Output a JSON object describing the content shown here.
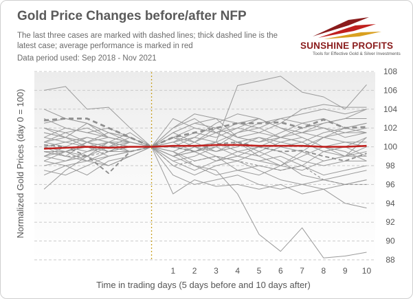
{
  "header": {
    "title": "Gold Price Changes before/after NFP",
    "subtitle": "The last three cases are marked with dashed lines; thick dashed line is the latest case; average performance is marked in red",
    "period": "Data period used: Sep 2018 - Nov 2021"
  },
  "logo": {
    "name": "SUNSHINE PROFITS",
    "tagline": "Tools for Effective Gold & Silver Investments"
  },
  "chart_data": {
    "type": "line",
    "xlabel": "Time in trading days (5 days before and 10 days after)",
    "ylabel": "Normalized Gold Prices (day 0 = 100)",
    "x": [
      -5,
      -4,
      -3,
      -2,
      -1,
      0,
      1,
      2,
      3,
      4,
      5,
      6,
      7,
      8,
      9,
      10
    ],
    "x_tick_labels": [
      "",
      "",
      "",
      "",
      "",
      "",
      "1",
      "2",
      "3",
      "4",
      "5",
      "6",
      "7",
      "8",
      "9",
      "10"
    ],
    "ylim": [
      88,
      108
    ],
    "y_ticks": [
      88,
      90,
      92,
      94,
      96,
      98,
      100,
      102,
      104,
      106,
      108
    ],
    "y_axis_side": "right",
    "grid": "horizontal dashed",
    "event_marker_x": 0,
    "colors": {
      "cases": "#9a9a9a",
      "average": "#c0201e",
      "event_line": "#c8a020"
    },
    "series": [
      {
        "values": [
          106.0,
          106.4,
          104.0,
          104.2,
          102.0,
          100,
          99.0,
          99.5,
          100.5,
          106.5,
          107.0,
          107.5,
          105.8,
          105.3,
          104.0,
          106.6
        ]
      },
      {
        "values": [
          104.0,
          103.0,
          102.5,
          101.5,
          101.0,
          100,
          101.5,
          102.5,
          103.0,
          101.0,
          101.5,
          102.5,
          104.0,
          104.5,
          104.2,
          104.2
        ]
      },
      {
        "values": [
          101.5,
          101.0,
          102.5,
          101.0,
          100.5,
          100,
          103.0,
          102.0,
          101.5,
          102.0,
          103.0,
          102.0,
          101.5,
          102.5,
          103.0,
          104.0
        ]
      },
      {
        "values": [
          99.5,
          99.0,
          100.5,
          100.0,
          101.0,
          100,
          102.0,
          103.0,
          101.5,
          100.5,
          99.0,
          98.0,
          97.5,
          98.5,
          99.0,
          101.0
        ]
      },
      {
        "values": [
          95.5,
          97.5,
          99.0,
          100.5,
          101.5,
          100,
          95.0,
          96.5,
          95.8,
          96.0,
          95.5,
          96.0,
          95.0,
          95.5,
          94.0,
          93.5
        ]
      },
      {
        "values": [
          98.5,
          98.0,
          97.0,
          98.5,
          99.0,
          100,
          99.0,
          98.0,
          97.5,
          95.0,
          90.7,
          88.9,
          91.4,
          88.2,
          88.4,
          88.8
        ]
      },
      {
        "values": [
          100.5,
          101.0,
          100.0,
          99.5,
          100.5,
          100,
          97.0,
          96.0,
          96.5,
          97.0,
          96.0,
          95.5,
          96.0,
          96.5,
          96.0,
          96.5
        ]
      },
      {
        "values": [
          102.0,
          101.5,
          102.0,
          101.0,
          100.5,
          100,
          100.5,
          101.5,
          101.0,
          102.0,
          101.5,
          101.0,
          100.5,
          101.5,
          102.0,
          101.5
        ]
      },
      {
        "values": [
          99.0,
          99.5,
          98.5,
          99.0,
          99.5,
          100,
          100.0,
          99.5,
          98.5,
          99.0,
          98.5,
          99.0,
          98.0,
          99.5,
          99.0,
          100.0
        ]
      },
      {
        "values": [
          97.0,
          98.0,
          98.5,
          99.5,
          100.0,
          100,
          99.5,
          98.0,
          97.0,
          97.5,
          98.0,
          97.5,
          98.0,
          97.0,
          97.5,
          98.0
        ]
      },
      {
        "values": [
          100.0,
          99.5,
          99.0,
          100.0,
          100.5,
          100,
          101.0,
          100.5,
          102.0,
          101.0,
          100.5,
          101.5,
          102.5,
          103.0,
          102.0,
          102.5
        ]
      },
      {
        "values": [
          101.0,
          100.5,
          101.0,
          100.5,
          100.0,
          100,
          99.0,
          100.0,
          99.5,
          100.5,
          101.0,
          100.0,
          99.5,
          98.5,
          99.0,
          99.5
        ]
      },
      {
        "values": [
          98.0,
          98.5,
          99.0,
          98.0,
          99.0,
          100,
          100.5,
          101.0,
          100.5,
          99.5,
          99.0,
          100.0,
          100.5,
          99.5,
          100.0,
          101.0
        ]
      },
      {
        "values": [
          103.0,
          102.0,
          101.5,
          101.0,
          100.5,
          100,
          98.5,
          99.0,
          100.0,
          101.5,
          102.5,
          103.0,
          103.5,
          104.0,
          103.5,
          104.0
        ]
      },
      {
        "values": [
          99.0,
          100.0,
          99.5,
          100.5,
          99.5,
          100,
          101.0,
          102.0,
          101.5,
          100.5,
          99.5,
          98.5,
          97.0,
          96.5,
          97.0,
          97.5
        ]
      },
      {
        "values": [
          100.5,
          100.0,
          101.0,
          100.5,
          100.0,
          100,
          98.0,
          97.0,
          98.0,
          98.5,
          97.5,
          96.5,
          96.0,
          95.5,
          96.0,
          96.5
        ]
      },
      {
        "values": [
          102.5,
          103.0,
          102.5,
          101.5,
          101.0,
          100,
          99.5,
          100.5,
          101.5,
          102.5,
          102.0,
          101.0,
          102.0,
          102.5,
          103.0,
          103.0
        ]
      },
      {
        "values": [
          97.5,
          97.0,
          98.0,
          99.0,
          99.5,
          100,
          101.5,
          100.5,
          99.5,
          100.0,
          101.0,
          100.5,
          100.0,
          101.0,
          101.5,
          101.5
        ]
      },
      {
        "values": [
          99.5,
          99.5,
          100.5,
          101.0,
          100.5,
          100,
          99.5,
          98.5,
          99.0,
          98.5,
          99.5,
          100.5,
          101.0,
          100.0,
          99.0,
          99.0
        ]
      },
      {
        "values": [
          101.0,
          102.0,
          101.5,
          102.0,
          101.0,
          100,
          100.0,
          101.0,
          102.5,
          103.5,
          103.0,
          102.0,
          101.5,
          101.0,
          100.5,
          100.0
        ]
      },
      {
        "values": [
          100.0,
          99.0,
          98.5,
          98.0,
          99.0,
          100,
          101.5,
          102.5,
          102.0,
          101.0,
          100.5,
          101.0,
          101.5,
          102.0,
          101.0,
          101.5
        ]
      },
      {
        "values": [
          98.5,
          99.5,
          100.0,
          99.0,
          99.5,
          100,
          98.5,
          97.5,
          98.5,
          99.5,
          100.0,
          99.5,
          98.5,
          98.0,
          98.5,
          98.5
        ]
      },
      {
        "values": [
          100.5,
          101.5,
          100.5,
          101.5,
          100.5,
          100,
          100.5,
          99.5,
          100.0,
          99.0,
          98.5,
          98.0,
          99.0,
          100.0,
          100.5,
          100.5
        ]
      },
      {
        "values": [
          99.0,
          98.5,
          99.5,
          100.0,
          100.0,
          100,
          102.0,
          103.5,
          103.0,
          102.5,
          103.0,
          102.0,
          101.0,
          100.0,
          99.5,
          98.5
        ]
      },
      {
        "values": [
          102.0,
          101.0,
          100.0,
          100.5,
          100.5,
          100,
          99.0,
          100.0,
          99.0,
          97.5,
          97.0,
          98.0,
          99.5,
          101.0,
          102.0,
          102.5
        ]
      },
      {
        "values": [
          101.5,
          101.0,
          100.5,
          99.5,
          99.5,
          100,
          101.0,
          100.0,
          100.5,
          101.5,
          102.0,
          103.0,
          102.5,
          102.0,
          101.5,
          102.0
        ]
      },
      {
        "values": [
          100.0,
          100.5,
          100.0,
          100.0,
          99.5,
          100,
          99.0,
          99.5,
          98.5,
          99.0,
          100.0,
          101.0,
          100.5,
          99.5,
          100.0,
          99.0
        ]
      },
      {
        "dashed": "thin",
        "values": [
          99.5,
          99.0,
          99.0,
          99.5,
          100.0,
          100,
          98.0,
          98.5,
          99.0,
          98.5,
          98.0,
          97.5,
          98.0,
          96.5,
          96.0,
          96.0
        ]
      },
      {
        "dashed": "medium",
        "values": [
          100.2,
          100.0,
          99.0,
          97.2,
          99.5,
          100,
          100.0,
          99.5,
          100.3,
          100.5,
          100.0,
          99.5,
          99.6,
          99.0,
          98.5,
          99.3
        ]
      },
      {
        "dashed": "thick",
        "values": [
          102.8,
          103.0,
          103.0,
          102.0,
          101.0,
          100,
          101.0,
          101.5,
          102.0,
          102.5,
          102.5,
          102.6,
          102.0,
          102.9,
          102.0,
          102.1
        ]
      },
      {
        "name": "average",
        "average": true,
        "values": [
          99.8,
          99.9,
          100.0,
          99.9,
          100.0,
          100,
          100.1,
          100.1,
          100.2,
          100.2,
          100.1,
          100.1,
          100.1,
          100.0,
          100.0,
          100.1
        ]
      }
    ]
  }
}
